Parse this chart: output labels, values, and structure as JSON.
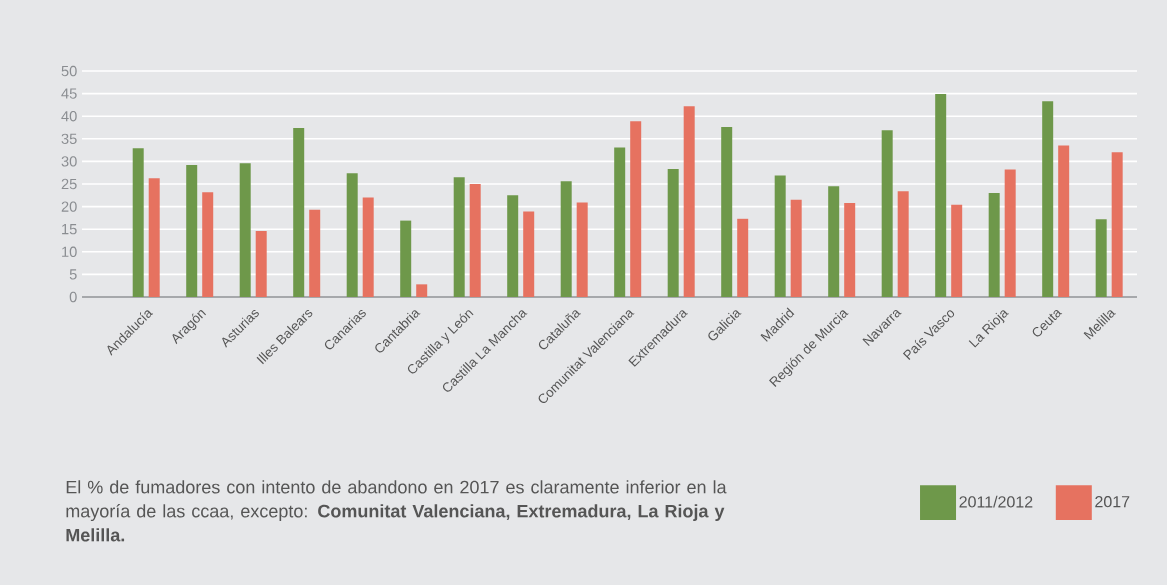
{
  "chart_data": {
    "type": "bar",
    "categories": [
      "Andalucía",
      "Aragón",
      "Asturias",
      "Illes Balears",
      "Canarias",
      "Cantabria",
      "Castilla y León",
      "Castilla La Mancha",
      "Cataluña",
      "Comunitat Valenciana",
      "Extremadura",
      "Galicia",
      "Madrid",
      "Región de Murcia",
      "Navarra",
      "País Vasco",
      "La Rioja",
      "Ceuta",
      "Melilla"
    ],
    "series": [
      {
        "name": "2011/2012",
        "color": "#6e984a",
        "values": [
          32.9,
          29.2,
          29.6,
          37.4,
          27.4,
          16.9,
          26.5,
          22.5,
          25.6,
          33.1,
          28.3,
          37.6,
          26.9,
          24.5,
          36.9,
          44.9,
          23.0,
          43.3,
          17.2
        ]
      },
      {
        "name": "2017",
        "color": "#e67260",
        "values": [
          26.3,
          23.2,
          14.6,
          19.3,
          22.0,
          2.8,
          25.0,
          18.9,
          20.9,
          38.9,
          42.2,
          17.3,
          21.5,
          20.8,
          23.4,
          20.4,
          28.2,
          33.5,
          32.0
        ]
      }
    ],
    "ylim": [
      0,
      50
    ],
    "yticks": [
      0,
      5,
      10,
      15,
      20,
      25,
      30,
      35,
      40,
      45,
      50
    ],
    "grid": "y",
    "legend": "bottom right",
    "annotations": [
      "El % de fumadores con intento de abandono en 2017 es claramente inferior en la mayoría de las ccaa, excepto: **Comunitat Valenciana, Extremadura, La Rioja y Melilla.**"
    ]
  }
}
